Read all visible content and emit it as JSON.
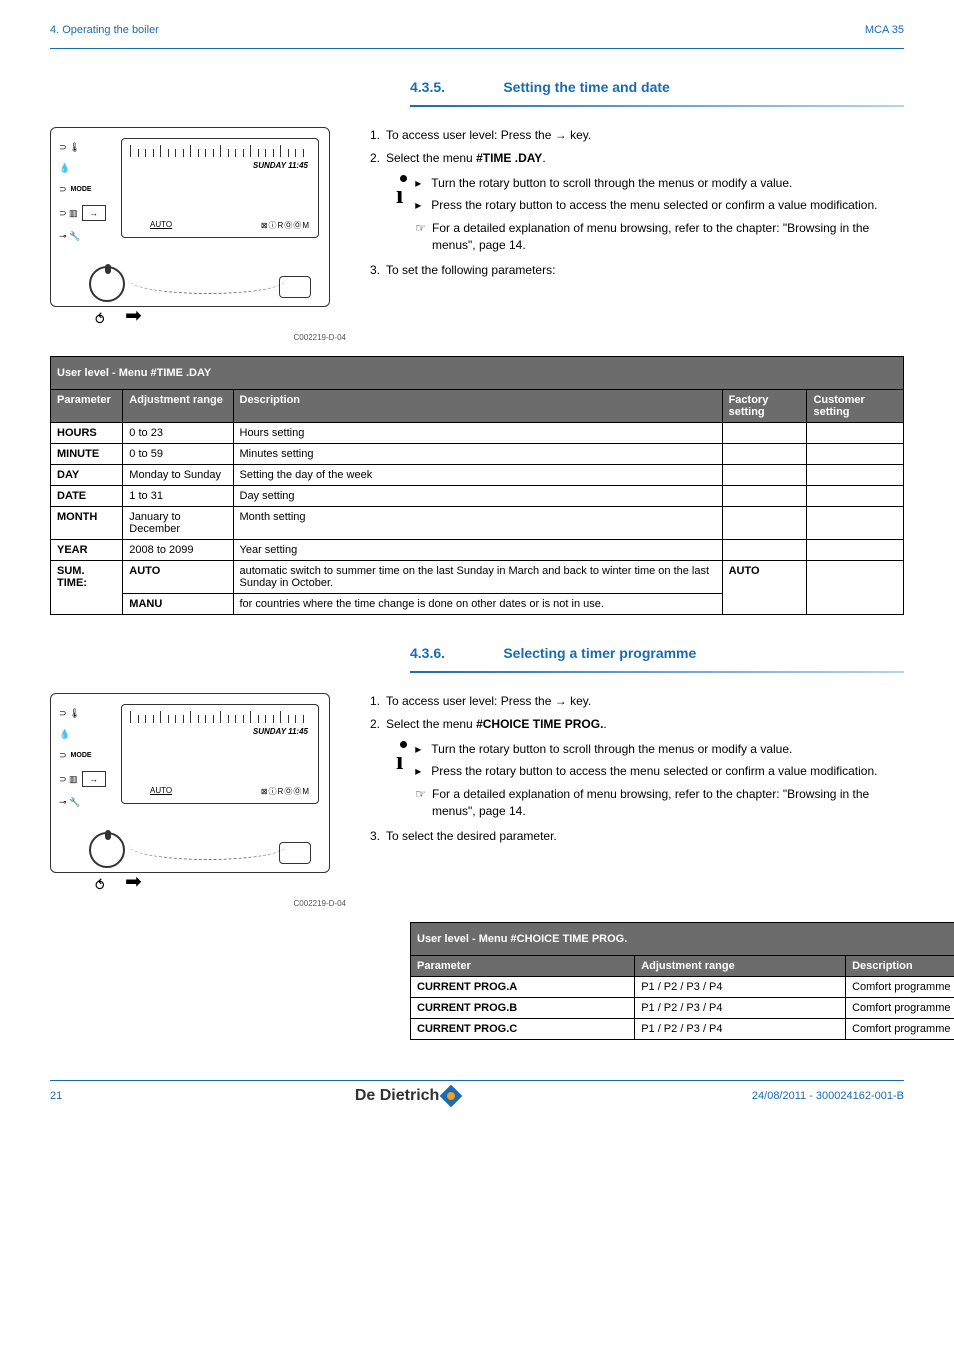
{
  "header": {
    "left": "4.  Operating the boiler",
    "right": "MCA 35"
  },
  "section1": {
    "number": "4.3.5.",
    "title": "Setting the time and date",
    "display": {
      "sunday": "SUNDAY 11:45",
      "auto": "AUTO",
      "room": "⊠ⓘRⓄⓄM",
      "mode": "MODE"
    },
    "img_code": "C002219-D-04",
    "steps": {
      "s1a": "1.",
      "s1b": "To access user level: Press the ",
      "s1c": " key.",
      "s2a": "2.",
      "s2b": "Select the menu ",
      "s2c": "#TIME .DAY",
      "s2d": ".",
      "info1": "Turn the rotary button to scroll through the menus or modify a value.",
      "info2": "Press the rotary button to access the menu selected or confirm a value modification.",
      "hand": "For a detailed explanation of menu browsing, refer to the chapter:  \"Browsing in the menus\", page 14.",
      "s3a": "3.",
      "s3b": "To set the following parameters:"
    }
  },
  "table1": {
    "banner": "User level - Menu #TIME .DAY",
    "headers": {
      "p": "Parameter",
      "a": "Adjustment range",
      "d": "Description",
      "f": "Factory setting",
      "c": "Customer setting"
    },
    "rows": [
      {
        "p": "HOURS",
        "a": "0 to 23",
        "d": "Hours setting",
        "f": "",
        "c": ""
      },
      {
        "p": "MINUTE",
        "a": "0 to 59",
        "d": "Minutes setting",
        "f": "",
        "c": ""
      },
      {
        "p": "DAY",
        "a": "Monday to Sunday",
        "d": "Setting the day of the week",
        "f": "",
        "c": ""
      },
      {
        "p": "DATE",
        "a": "1 to 31",
        "d": "Day setting",
        "f": "",
        "c": ""
      },
      {
        "p": "MONTH",
        "a": "January to December",
        "d": "Month setting",
        "f": "",
        "c": ""
      },
      {
        "p": "YEAR",
        "a": "2008 to 2099",
        "d": "Year setting",
        "f": "",
        "c": ""
      }
    ],
    "sum": {
      "p": "SUM. TIME:",
      "a1": "AUTO",
      "d1": "automatic switch to summer time on the last Sunday in March and back to winter time on the last Sunday in October.",
      "f1": "AUTO",
      "a2": "MANU",
      "d2": "for countries where the time change is done on other dates or is not in use."
    }
  },
  "section2": {
    "number": "4.3.6.",
    "title": "Selecting a timer programme",
    "display": {
      "sunday": "SUNDAY 11:45",
      "auto": "AUTO",
      "room": "⊠ⓘRⓄⓄM",
      "mode": "MODE"
    },
    "img_code": "C002219-D-04",
    "steps": {
      "s1a": "1.",
      "s1b": "To access user level: Press the ",
      "s1c": " key.",
      "s2a": "2.",
      "s2b": "Select the menu ",
      "s2c": "#CHOICE TIME PROG.",
      "s2d": ".",
      "info1": "Turn the rotary button to scroll through the menus or modify a value.",
      "info2": "Press the rotary button to access the menu selected or confirm a value modification.",
      "hand": "For a detailed explanation of menu browsing, refer to the chapter:  \"Browsing in the menus\", page 14.",
      "s3a": "3.",
      "s3b": "To select the desired parameter."
    }
  },
  "table2": {
    "banner": "User level - Menu #CHOICE TIME PROG.",
    "headers": {
      "p": "Parameter",
      "a": "Adjustment range",
      "d": "Description"
    },
    "rows": [
      {
        "p": "CURRENT PROG.A",
        "a": "P1 / P2 / P3 / P4",
        "d": "Comfort programme activated (Circuit A)"
      },
      {
        "p": "CURRENT PROG.B",
        "a": "P1 / P2 / P3 / P4",
        "d": "Comfort programme activated (Circuit B)"
      },
      {
        "p": "CURRENT PROG.C",
        "a": "P1 / P2 / P3 / P4",
        "d": "Comfort programme activated (Circuit C)"
      }
    ]
  },
  "footer": {
    "page": "21",
    "logo": "De Dietrich",
    "date": "24/08/2011  - 300024162-001-B"
  }
}
